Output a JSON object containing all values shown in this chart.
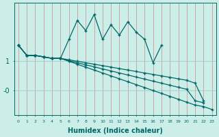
{
  "xlabel": "Humidex (Indice chaleur)",
  "bg_color": "#cbeee9",
  "line_color": "#006666",
  "grid_color_v": "#cc8888",
  "grid_color_h": "#99cccc",
  "x_values": [
    0,
    1,
    2,
    3,
    4,
    5,
    6,
    7,
    8,
    9,
    10,
    11,
    12,
    13,
    14,
    15,
    16,
    17,
    18,
    19,
    20,
    21,
    22,
    23
  ],
  "series_zigzag_x": [
    0,
    1,
    2,
    3,
    4,
    5,
    6,
    7,
    8,
    9,
    10,
    11,
    12,
    13,
    14,
    15,
    16,
    17
  ],
  "series_zigzag_y": [
    1.55,
    1.2,
    1.2,
    1.15,
    1.1,
    1.1,
    1.75,
    2.4,
    2.05,
    2.6,
    1.75,
    2.25,
    1.9,
    2.35,
    2.0,
    1.75,
    0.95,
    1.55
  ],
  "series_line1_x": [
    0,
    1,
    2,
    3,
    4,
    5,
    6,
    7,
    8,
    9,
    10,
    11,
    12,
    13,
    14,
    15,
    16,
    17,
    18,
    19,
    20,
    21,
    22
  ],
  "series_line1_y": [
    1.55,
    1.2,
    1.2,
    1.15,
    1.1,
    1.1,
    1.05,
    1.0,
    0.95,
    0.9,
    0.85,
    0.8,
    0.75,
    0.7,
    0.65,
    0.6,
    0.55,
    0.5,
    0.45,
    0.4,
    0.35,
    0.25,
    -0.35
  ],
  "series_line2_x": [
    0,
    1,
    2,
    3,
    4,
    5,
    6,
    7,
    8,
    9,
    10,
    11,
    12,
    13,
    14,
    15,
    16,
    17,
    18,
    19,
    20,
    21,
    22
  ],
  "series_line2_y": [
    1.55,
    1.2,
    1.2,
    1.15,
    1.1,
    1.1,
    1.02,
    0.95,
    0.88,
    0.81,
    0.74,
    0.67,
    0.6,
    0.53,
    0.46,
    0.39,
    0.32,
    0.25,
    0.18,
    0.11,
    0.04,
    -0.35,
    -0.42
  ],
  "series_line3_x": [
    0,
    1,
    2,
    3,
    4,
    5,
    6,
    7,
    8,
    9,
    10,
    11,
    12,
    13,
    14,
    15,
    16,
    17,
    18,
    19,
    20,
    21,
    22,
    23
  ],
  "series_line3_y": [
    1.55,
    1.2,
    1.2,
    1.15,
    1.1,
    1.1,
    1.0,
    0.9,
    0.8,
    0.7,
    0.6,
    0.5,
    0.4,
    0.3,
    0.2,
    0.1,
    0.0,
    -0.1,
    -0.2,
    -0.3,
    -0.4,
    -0.5,
    -0.55,
    -0.65
  ],
  "yticks": [
    1.0,
    0.0
  ],
  "ytick_labels": [
    "1",
    "-0"
  ],
  "ylim": [
    -0.85,
    3.0
  ],
  "xlim": [
    -0.5,
    23.5
  ]
}
